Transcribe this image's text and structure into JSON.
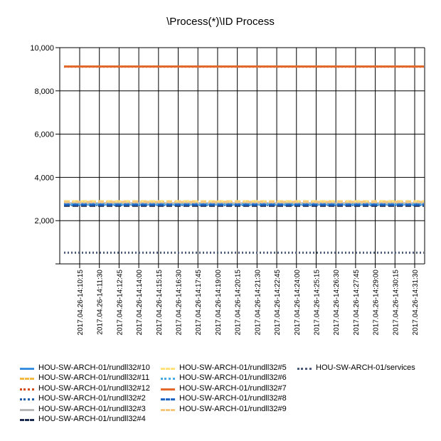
{
  "chart_data": {
    "type": "line",
    "title": "\\Process(*)\\ID Process",
    "xlabel": "",
    "ylabel": "",
    "ylim": [
      0,
      10000
    ],
    "yticks": [
      0,
      2000,
      4000,
      6000,
      8000,
      10000
    ],
    "ytick_labels": [
      "",
      "2,000",
      "4,000",
      "6,000",
      "8,000",
      "10,000"
    ],
    "categories": [
      "2017.04.26-14:10:15",
      "2017.04.26-14:11:30",
      "2017.04.26-14:12:45",
      "2017.04.26-14:14:00",
      "2017.04.26-14:15:15",
      "2017.04.26-14:16:30",
      "2017.04.26-14:17:45",
      "2017.04.26-14:19:00",
      "2017.04.26-14:20:15",
      "2017.04.26-14:21:30",
      "2017.04.26-14:22:45",
      "2017.04.26-14:24:00",
      "2017.04.26-14:25:15",
      "2017.04.26-14:26:30",
      "2017.04.26-14:27:45",
      "2017.04.26-14:29:00",
      "2017.04.26-14:30:15",
      "2017.04.26-14:31:30"
    ],
    "grid": true,
    "legend_position": "bottom",
    "series": [
      {
        "name": "HOU-SW-ARCH-01/rundll32#10",
        "color": "#3c8fdc",
        "dash": "solid",
        "value": 2750
      },
      {
        "name": "HOU-SW-ARCH-01/rundll32#11",
        "color": "#f4b942",
        "dash": "dash",
        "value": 2880
      },
      {
        "name": "HOU-SW-ARCH-01/rundll32#12",
        "color": "#d84a1b",
        "dash": "dot",
        "value": 9120
      },
      {
        "name": "HOU-SW-ARCH-01/rundll32#2",
        "color": "#1f5fa8",
        "dash": "dot",
        "value": 2720
      },
      {
        "name": "HOU-SW-ARCH-01/rundll32#3",
        "color": "#b8b8b8",
        "dash": "solid",
        "value": 2800
      },
      {
        "name": "HOU-SW-ARCH-01/rundll32#4",
        "color": "#1b2c4e",
        "dash": "dash",
        "value": 2690
      },
      {
        "name": "HOU-SW-ARCH-01/rundll32#5",
        "color": "#ffe27a",
        "dash": "dash",
        "value": 2900
      },
      {
        "name": "HOU-SW-ARCH-01/rundll32#6",
        "color": "#49a9e0",
        "dash": "dot",
        "value": 2760
      },
      {
        "name": "HOU-SW-ARCH-01/rundll32#7",
        "color": "#e2692b",
        "dash": "solid",
        "value": 9130
      },
      {
        "name": "HOU-SW-ARCH-01/rundll32#8",
        "color": "#1f66c7",
        "dash": "dash",
        "value": 2740
      },
      {
        "name": "HOU-SW-ARCH-01/rundll32#9",
        "color": "#f5c77e",
        "dash": "dashdot",
        "value": 2870
      },
      {
        "name": "HOU-SW-ARCH-01/services",
        "color": "#4a5a78",
        "dash": "dot",
        "value": 520
      }
    ]
  }
}
